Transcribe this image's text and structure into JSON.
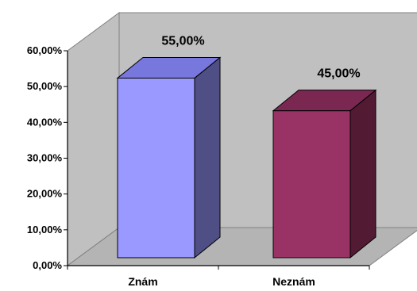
{
  "chart_data": {
    "type": "bar",
    "categories": [
      "Znám",
      "Neznám"
    ],
    "values": [
      55.0,
      45.0
    ],
    "data_labels": [
      "55,00%",
      "45,00%"
    ],
    "ylim": [
      0,
      60
    ],
    "yticks": [
      0,
      10,
      20,
      30,
      40,
      50,
      60
    ],
    "ytick_labels": [
      "0,00%",
      "10,00%",
      "20,00%",
      "30,00%",
      "40,00%",
      "50,00%",
      "60,00%"
    ],
    "three_d": true,
    "grid": false,
    "legend": "none"
  },
  "colors": {
    "background": "#ffffff",
    "wall": "#c0c0c0",
    "floor": "#b4b4b4",
    "series_front": [
      "#9999ff",
      "#993366"
    ],
    "series_side": [
      "#4f4f86",
      "#521a33"
    ],
    "series_top": [
      "#7777dd",
      "#7a2851"
    ]
  }
}
